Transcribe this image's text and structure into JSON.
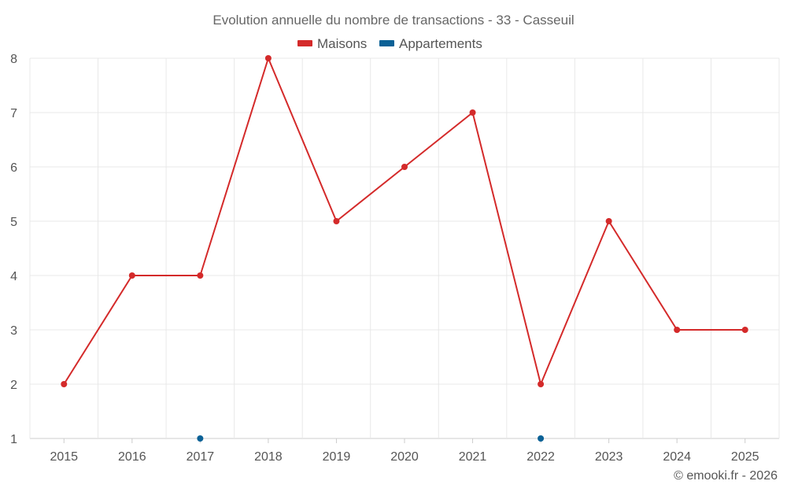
{
  "chart_data": {
    "type": "line",
    "title": "Evolution annuelle du nombre de transactions - 33 - Casseuil",
    "categories": [
      "2015",
      "2016",
      "2017",
      "2018",
      "2019",
      "2020",
      "2021",
      "2022",
      "2023",
      "2024",
      "2025"
    ],
    "series": [
      {
        "name": "Maisons",
        "color": "#d42a2a",
        "values": [
          2,
          4,
          4,
          8,
          5,
          6,
          7,
          2,
          5,
          3,
          3
        ]
      },
      {
        "name": "Appartements",
        "color": "#0b6196",
        "values": [
          null,
          null,
          1,
          null,
          null,
          null,
          null,
          1,
          null,
          null,
          null
        ]
      }
    ],
    "ylim": [
      1,
      8
    ],
    "yticks": [
      "1",
      "2",
      "3",
      "4",
      "5",
      "6",
      "7",
      "8"
    ],
    "xlabel": "",
    "ylabel": "",
    "grid": true,
    "legend_position": "top-center"
  },
  "credit": "© emooki.fr - 2026"
}
